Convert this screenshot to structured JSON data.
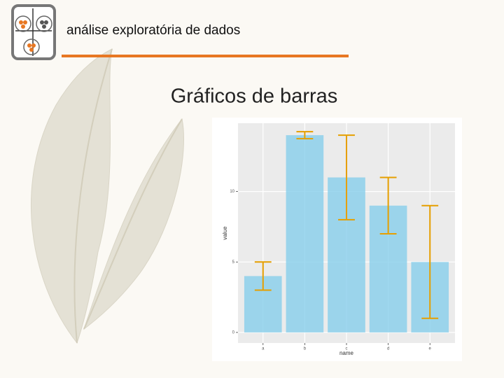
{
  "slide": {
    "header": "análise exploratória de dados",
    "title": "Gráficos de barras"
  },
  "chart_data": {
    "type": "bar",
    "categories": [
      "a",
      "b",
      "c",
      "d",
      "e"
    ],
    "values": [
      4,
      14,
      11,
      9,
      5
    ],
    "errors": [
      1,
      0.25,
      3,
      2,
      4
    ],
    "color": "#87ceeb",
    "error_color": "#e69f00",
    "xlabel": "name",
    "ylabel": "value",
    "ylim": [
      -0.75,
      14.85
    ],
    "yticks": [
      0,
      5,
      10
    ],
    "grid": true
  }
}
